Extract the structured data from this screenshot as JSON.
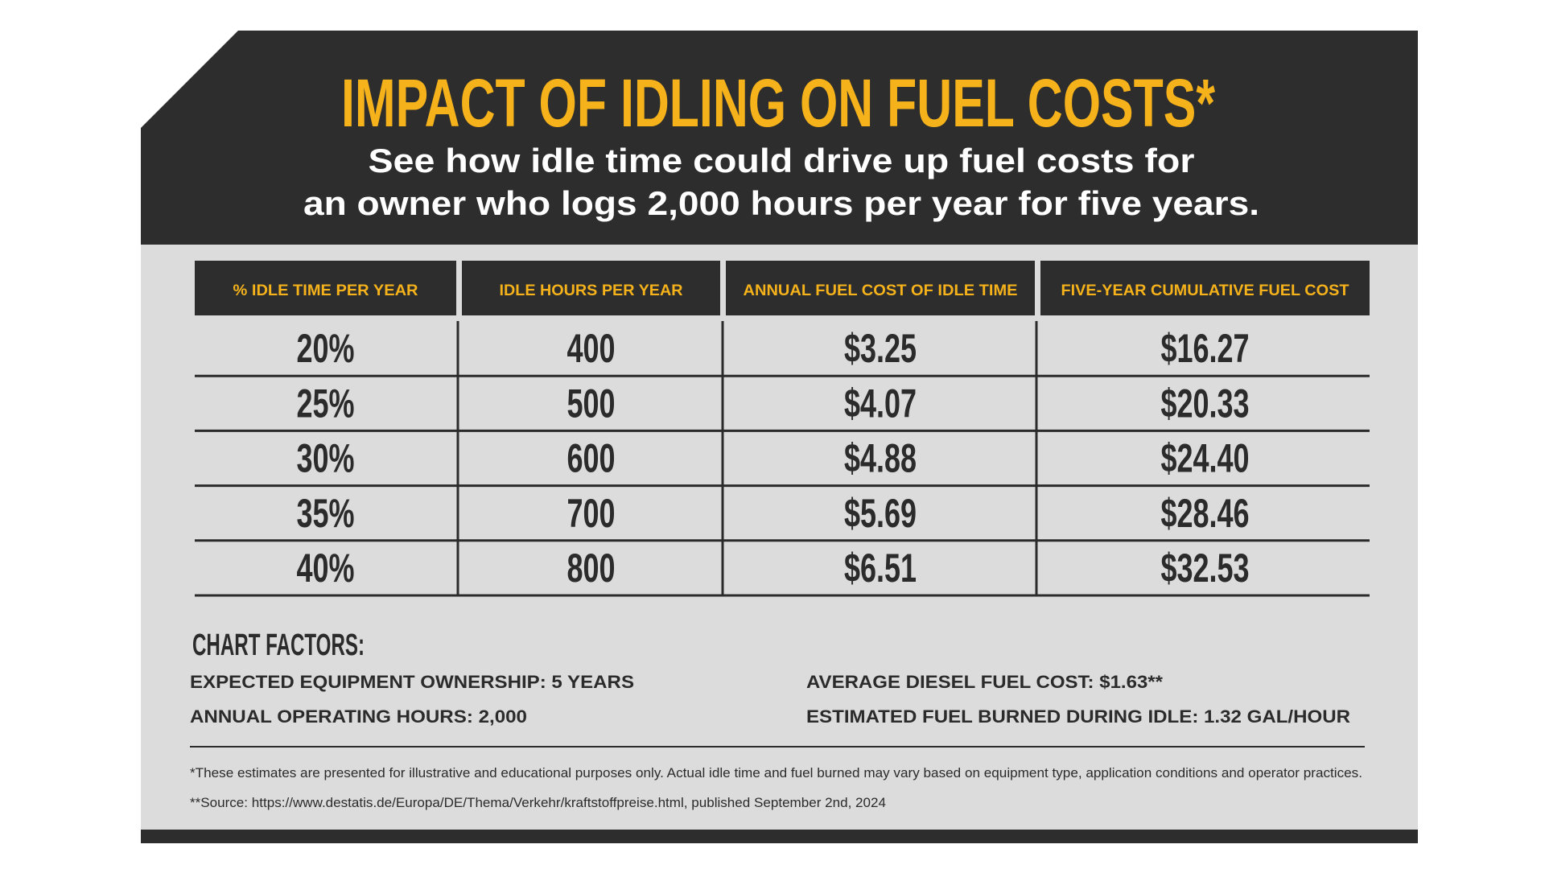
{
  "header": {
    "title": "IMPACT OF IDLING ON FUEL COSTS*",
    "subtitle": [
      "See how idle time could drive up fuel costs for",
      "an owner who logs 2,000 hours per year for five years."
    ]
  },
  "table": {
    "columns": [
      "% IDLE TIME PER YEAR",
      "IDLE HOURS PER YEAR",
      "ANNUAL FUEL COST OF IDLE TIME",
      "FIVE-YEAR CUMULATIVE FUEL COST"
    ],
    "rows": [
      [
        "20%",
        "400",
        "$3.25",
        "$16.27"
      ],
      [
        "25%",
        "500",
        "$4.07",
        "$20.33"
      ],
      [
        "30%",
        "600",
        "$4.88",
        "$24.40"
      ],
      [
        "35%",
        "700",
        "$5.69",
        "$28.46"
      ],
      [
        "40%",
        "800",
        "$6.51",
        "$32.53"
      ]
    ]
  },
  "factors": {
    "title": "CHART FACTORS:",
    "items": [
      "EXPECTED EQUIPMENT OWNERSHIP: 5 YEARS",
      "ANNUAL OPERATING HOURS: 2,000",
      "AVERAGE DIESEL FUEL COST: $1.63**",
      "ESTIMATED FUEL BURNED DURING IDLE: 1.32 GAL/HOUR"
    ]
  },
  "footnotes": [
    "*These estimates are presented for illustrative and educational purposes only. Actual idle time and fuel burned may vary based on equipment type, application conditions and operator practices.",
    "**Source: https://www.destatis.de/Europa/DE/Thema/Verkehr/kraftstoffpreise.html, published September 2nd, 2024"
  ]
}
